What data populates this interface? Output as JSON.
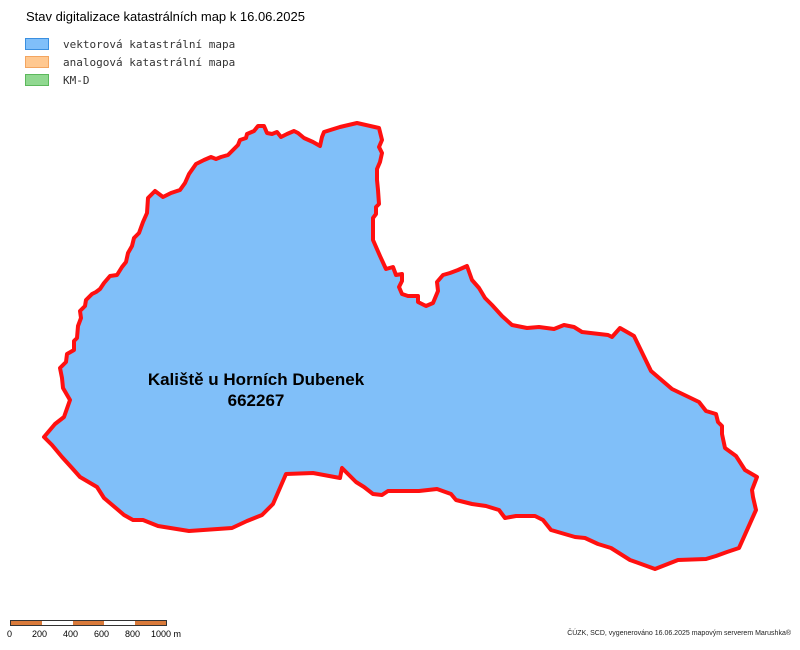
{
  "map": {
    "title": "Stav digitalizace katastrálních map k 16.06.2025",
    "legend": [
      {
        "label": "vektorová katastrální mapa",
        "fill": "#80bff9",
        "border": "#3a8fe0"
      },
      {
        "label": "analogová katastrální mapa",
        "fill": "#ffc890",
        "border": "#f3a560"
      },
      {
        "label": "KM-D",
        "fill": "#90d890",
        "border": "#5cb85c"
      }
    ],
    "parcel": {
      "name": "Kaliště u Horních Dubenek",
      "code": "662267",
      "fill": "#80bff9",
      "outline": "#ff1010"
    },
    "scale": {
      "ticks": [
        "0",
        "200",
        "400",
        "600",
        "800",
        "1000 m"
      ],
      "colors": {
        "dark": "#d97a3a",
        "light": "#ffffff"
      }
    },
    "attribution": "ČÚZK, SCD, vygenerováno 16.06.2025 mapovým serverem Marushka®"
  }
}
